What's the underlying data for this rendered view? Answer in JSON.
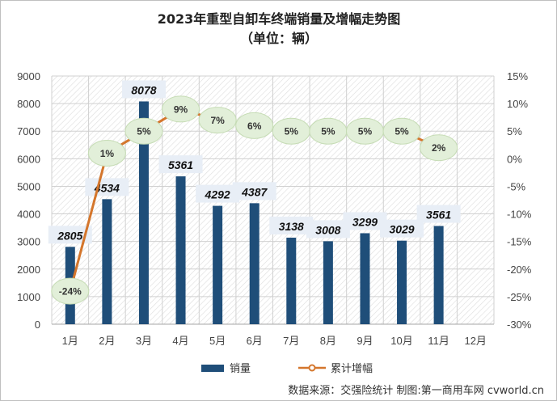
{
  "chart_data": {
    "type": "bar+line",
    "title": "2023年重型自卸车终端销量及增幅走势图",
    "subtitle": "（单位：辆）",
    "categories": [
      "1月",
      "2月",
      "3月",
      "4月",
      "5月",
      "6月",
      "7月",
      "8月",
      "9月",
      "10月",
      "11月",
      "12月"
    ],
    "series": [
      {
        "name": "销量",
        "type": "bar",
        "axis": "left",
        "color": "#1f4e79",
        "values": [
          2805,
          4534,
          8078,
          5361,
          4292,
          4387,
          3138,
          3008,
          3299,
          3029,
          3561,
          null
        ]
      },
      {
        "name": "累计增幅",
        "type": "line",
        "axis": "right",
        "color": "#d4762c",
        "values": [
          -24,
          1,
          5,
          9,
          7,
          6,
          5,
          5,
          5,
          5,
          2,
          null
        ]
      }
    ],
    "y_left": {
      "min": 0,
      "max": 9000,
      "step": 1000,
      "ticks": [
        "0",
        "1000",
        "2000",
        "3000",
        "4000",
        "5000",
        "6000",
        "7000",
        "8000",
        "9000"
      ]
    },
    "y_right": {
      "min": -30,
      "max": 15,
      "step": 5,
      "ticks": [
        "-30%",
        "-25%",
        "-20%",
        "-15%",
        "-10%",
        "-5%",
        "0%",
        "5%",
        "10%",
        "15%"
      ]
    },
    "bar_labels": [
      "2805",
      "4534",
      "8078",
      "5361",
      "4292",
      "4387",
      "3138",
      "3008",
      "3299",
      "3029",
      "3561"
    ],
    "line_labels": [
      "-24%",
      "1%",
      "5%",
      "9%",
      "7%",
      "6%",
      "5%",
      "5%",
      "5%",
      "5%",
      "2%"
    ],
    "legend_position": "bottom",
    "grid": true
  },
  "source_text": "数据来源：交强险统计 制图:第一商用车网 cvworld.cn"
}
